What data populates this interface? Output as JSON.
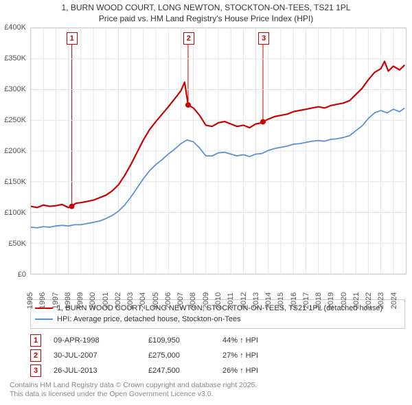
{
  "title_line1": "1, BURN WOOD COURT, LONG NEWTON, STOCKTON-ON-TEES, TS21 1PL",
  "title_line2": "Price paid vs. HM Land Registry's House Price Index (HPI)",
  "chart": {
    "type": "line",
    "xlim": [
      1995,
      2025
    ],
    "ylim": [
      0,
      400000
    ],
    "ytick_step": 50000,
    "yticks": [
      "£0",
      "£50K",
      "£100K",
      "£150K",
      "£200K",
      "£250K",
      "£300K",
      "£350K",
      "£400K"
    ],
    "xticks": [
      1995,
      1996,
      1997,
      1998,
      1999,
      2000,
      2001,
      2002,
      2003,
      2004,
      2005,
      2006,
      2007,
      2008,
      2009,
      2010,
      2011,
      2012,
      2013,
      2014,
      2015,
      2016,
      2017,
      2018,
      2019,
      2020,
      2021,
      2022,
      2023,
      2024
    ],
    "background_color": "#ffffff",
    "grid_color": "#e4e4e4",
    "series": [
      {
        "name": "1, BURN WOOD COURT, LONG NEWTON, STOCKTON-ON-TEES, TS21 1PL (detached house)",
        "color": "#cc0000",
        "line_width": 2.2,
        "data": [
          [
            1995.0,
            110000
          ],
          [
            1995.5,
            108000
          ],
          [
            1996.0,
            112000
          ],
          [
            1996.5,
            110000
          ],
          [
            1997.0,
            111000
          ],
          [
            1997.5,
            113000
          ],
          [
            1998.0,
            108000
          ],
          [
            1998.27,
            109950
          ],
          [
            1998.6,
            115000
          ],
          [
            1999.0,
            116000
          ],
          [
            1999.5,
            118000
          ],
          [
            2000.0,
            120000
          ],
          [
            2000.5,
            124000
          ],
          [
            2001.0,
            128000
          ],
          [
            2001.5,
            135000
          ],
          [
            2002.0,
            145000
          ],
          [
            2002.5,
            160000
          ],
          [
            2003.0,
            178000
          ],
          [
            2003.5,
            198000
          ],
          [
            2004.0,
            218000
          ],
          [
            2004.5,
            235000
          ],
          [
            2005.0,
            248000
          ],
          [
            2005.5,
            260000
          ],
          [
            2006.0,
            272000
          ],
          [
            2006.5,
            285000
          ],
          [
            2007.0,
            298000
          ],
          [
            2007.3,
            312000
          ],
          [
            2007.58,
            275000
          ],
          [
            2008.0,
            270000
          ],
          [
            2008.5,
            258000
          ],
          [
            2009.0,
            242000
          ],
          [
            2009.5,
            240000
          ],
          [
            2010.0,
            246000
          ],
          [
            2010.5,
            248000
          ],
          [
            2011.0,
            244000
          ],
          [
            2011.5,
            240000
          ],
          [
            2012.0,
            242000
          ],
          [
            2012.5,
            238000
          ],
          [
            2013.0,
            244000
          ],
          [
            2013.5,
            246000
          ],
          [
            2013.57,
            247500
          ],
          [
            2014.0,
            252000
          ],
          [
            2014.5,
            256000
          ],
          [
            2015.0,
            258000
          ],
          [
            2015.5,
            260000
          ],
          [
            2016.0,
            264000
          ],
          [
            2016.5,
            266000
          ],
          [
            2017.0,
            268000
          ],
          [
            2017.5,
            270000
          ],
          [
            2018.0,
            272000
          ],
          [
            2018.5,
            270000
          ],
          [
            2019.0,
            274000
          ],
          [
            2019.5,
            276000
          ],
          [
            2020.0,
            278000
          ],
          [
            2020.5,
            282000
          ],
          [
            2021.0,
            292000
          ],
          [
            2021.5,
            302000
          ],
          [
            2022.0,
            316000
          ],
          [
            2022.5,
            328000
          ],
          [
            2023.0,
            334000
          ],
          [
            2023.3,
            346000
          ],
          [
            2023.6,
            330000
          ],
          [
            2024.0,
            338000
          ],
          [
            2024.5,
            332000
          ],
          [
            2024.9,
            340000
          ]
        ]
      },
      {
        "name": "HPI: Average price, detached house, Stockton-on-Tees",
        "color": "#5b8fd6",
        "line_width": 1.8,
        "data": [
          [
            1995.0,
            76000
          ],
          [
            1995.5,
            75000
          ],
          [
            1996.0,
            77000
          ],
          [
            1996.5,
            76000
          ],
          [
            1997.0,
            78000
          ],
          [
            1997.5,
            79000
          ],
          [
            1998.0,
            78000
          ],
          [
            1998.5,
            80000
          ],
          [
            1999.0,
            80000
          ],
          [
            1999.5,
            82000
          ],
          [
            2000.0,
            84000
          ],
          [
            2000.5,
            86000
          ],
          [
            2001.0,
            90000
          ],
          [
            2001.5,
            95000
          ],
          [
            2002.0,
            102000
          ],
          [
            2002.5,
            112000
          ],
          [
            2003.0,
            125000
          ],
          [
            2003.5,
            140000
          ],
          [
            2004.0,
            155000
          ],
          [
            2004.5,
            168000
          ],
          [
            2005.0,
            178000
          ],
          [
            2005.5,
            186000
          ],
          [
            2006.0,
            195000
          ],
          [
            2006.5,
            203000
          ],
          [
            2007.0,
            212000
          ],
          [
            2007.5,
            218000
          ],
          [
            2008.0,
            215000
          ],
          [
            2008.5,
            205000
          ],
          [
            2009.0,
            192000
          ],
          [
            2009.5,
            192000
          ],
          [
            2010.0,
            197000
          ],
          [
            2010.5,
            198000
          ],
          [
            2011.0,
            195000
          ],
          [
            2011.5,
            192000
          ],
          [
            2012.0,
            194000
          ],
          [
            2012.5,
            191000
          ],
          [
            2013.0,
            195000
          ],
          [
            2013.5,
            196000
          ],
          [
            2014.0,
            201000
          ],
          [
            2014.5,
            204000
          ],
          [
            2015.0,
            206000
          ],
          [
            2015.5,
            208000
          ],
          [
            2016.0,
            211000
          ],
          [
            2016.5,
            212000
          ],
          [
            2017.0,
            214000
          ],
          [
            2017.5,
            216000
          ],
          [
            2018.0,
            217000
          ],
          [
            2018.5,
            216000
          ],
          [
            2019.0,
            219000
          ],
          [
            2019.5,
            220000
          ],
          [
            2020.0,
            222000
          ],
          [
            2020.5,
            225000
          ],
          [
            2021.0,
            233000
          ],
          [
            2021.5,
            241000
          ],
          [
            2022.0,
            253000
          ],
          [
            2022.5,
            262000
          ],
          [
            2023.0,
            266000
          ],
          [
            2023.5,
            262000
          ],
          [
            2024.0,
            268000
          ],
          [
            2024.5,
            264000
          ],
          [
            2024.9,
            270000
          ]
        ]
      }
    ],
    "markers": [
      {
        "x": 1998.27,
        "y": 109950,
        "color": "#cc0000",
        "label": "1",
        "label_pos": "above"
      },
      {
        "x": 2007.58,
        "y": 275000,
        "color": "#cc0000",
        "label": "2",
        "label_pos": "above"
      },
      {
        "x": 2013.57,
        "y": 247500,
        "color": "#cc0000",
        "label": "3",
        "label_pos": "above"
      }
    ]
  },
  "legend": {
    "items": [
      {
        "color": "#cc0000",
        "label": "1, BURN WOOD COURT, LONG NEWTON, STOCKTON-ON-TEES, TS21 1PL (detached house)"
      },
      {
        "color": "#5b8fd6",
        "label": "HPI: Average price, detached house, Stockton-on-Tees"
      }
    ]
  },
  "sales": [
    {
      "idx": "1",
      "date": "09-APR-1998",
      "price": "£109,950",
      "pct": "44% ↑ HPI"
    },
    {
      "idx": "2",
      "date": "30-JUL-2007",
      "price": "£275,000",
      "pct": "27% ↑ HPI"
    },
    {
      "idx": "3",
      "date": "26-JUL-2013",
      "price": "£247,500",
      "pct": "26% ↑ HPI"
    }
  ],
  "footer_line1": "Contains HM Land Registry data © Crown copyright and database right 2025.",
  "footer_line2": "This data is licensed under the Open Government Licence v3.0."
}
